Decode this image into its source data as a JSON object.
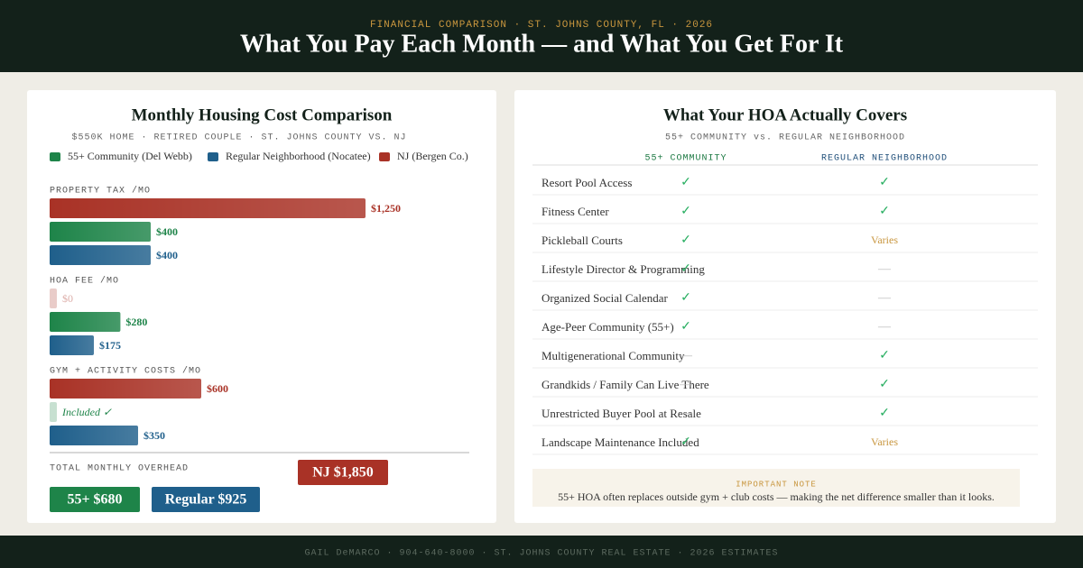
{
  "header": {
    "kicker": "FINANCIAL COMPARISON · ST. JOHNS COUNTY, FL · 2026",
    "title": "What You Pay Each Month — and What You Get For It"
  },
  "chart_data": {
    "type": "bar",
    "title": "Monthly Housing Cost Comparison",
    "subtitle": "$550K HOME · RETIRED COUPLE · ST. JOHNS COUNTY VS. NJ",
    "categories": [
      "PROPERTY TAX /MO",
      "HOA FEE /MO",
      "GYM + ACTIVITY COSTS /MO"
    ],
    "series": [
      {
        "name": "55+ Community (Del Webb)",
        "color": "#1e8449",
        "values": [
          400,
          280,
          null
        ],
        "value_labels": [
          "$400",
          "$280",
          "Included ✓"
        ]
      },
      {
        "name": "Regular Neighborhood (Nocatee)",
        "color": "#1f5f8b",
        "values": [
          400,
          175,
          350
        ],
        "value_labels": [
          "$400",
          "$175",
          "$350"
        ]
      },
      {
        "name": "NJ (Bergen Co.)",
        "color": "#a93226",
        "values": [
          1250,
          0,
          600
        ],
        "value_labels": [
          "$1,250",
          "$0",
          "$600"
        ]
      }
    ],
    "total_label": "TOTAL MONTHLY OVERHEAD",
    "totals": [
      "55+ $680",
      "Regular $925",
      "NJ $1,850"
    ]
  },
  "table": {
    "title": "What Your HOA Actually Covers",
    "subtitle": "55+ COMMUNITY vs. REGULAR NEIGHBORHOOD",
    "columns": [
      "55+ COMMUNITY",
      "REGULAR NEIGHBORHOOD"
    ],
    "rows": [
      [
        "Resort Pool Access",
        "✓",
        "✓"
      ],
      [
        "Fitness Center",
        "✓",
        "✓"
      ],
      [
        "Pickleball Courts",
        "✓",
        "Varies"
      ],
      [
        "Lifestyle Director & Programming",
        "✓",
        "—"
      ],
      [
        "Organized Social Calendar",
        "✓",
        "—"
      ],
      [
        "Age-Peer Community (55+)",
        "✓",
        "—"
      ],
      [
        "Multigenerational Community",
        "—",
        "✓"
      ],
      [
        "Grandkids / Family Can Live There",
        "—",
        "✓"
      ],
      [
        "Unrestricted Buyer Pool at Resale",
        "—",
        "✓"
      ],
      [
        "Landscape Maintenance Included",
        "✓",
        "Varies"
      ]
    ],
    "note_title": "IMPORTANT NOTE",
    "note": "55+ HOA often replaces outside gym + club costs — making the net difference smaller than it looks."
  },
  "footer": "GAIL DeMARCO · 904-640-8000 · ST. JOHNS COUNTY REAL ESTATE · 2026 ESTIMATES"
}
